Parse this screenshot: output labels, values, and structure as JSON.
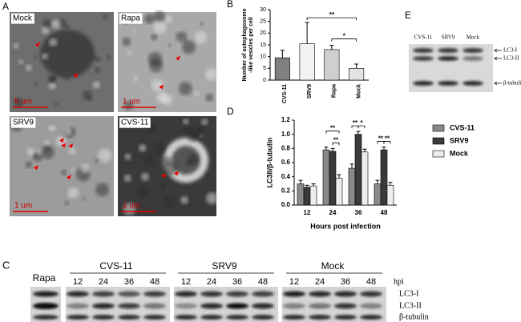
{
  "chart_data": [
    {
      "type": "bar",
      "ylabel": [
        "Number of autophagosome",
        "-like vesicles per cell"
      ],
      "categories": [
        "CVS-11",
        "SRV9",
        "Rapa",
        "Mock"
      ],
      "values": [
        9.5,
        15.5,
        13,
        5
      ],
      "errors": [
        3.2,
        9,
        1.8,
        1.8
      ],
      "colors": [
        "#808080",
        "#f2f2f2",
        "#cfcfcf",
        "#e4e4e4"
      ],
      "ylim": [
        0,
        30
      ],
      "yticks": [
        0,
        5,
        10,
        15,
        20,
        25,
        30
      ],
      "annotations": [
        "**",
        "*"
      ]
    },
    {
      "type": "bar",
      "ylabel": "LC3II/β-tubulin",
      "xlabel": "Hours post infection",
      "categories": [
        "12",
        "24",
        "36",
        "48"
      ],
      "series": [
        {
          "name": "CVS-11",
          "color": "#8a8a8a",
          "values": [
            0.3,
            0.78,
            0.52,
            0.3
          ],
          "errors": [
            0.05,
            0.04,
            0.06,
            0.05
          ]
        },
        {
          "name": "SRV9",
          "color": "#3a3a3a",
          "values": [
            0.25,
            0.76,
            1.0,
            0.78
          ],
          "errors": [
            0.03,
            0.04,
            0.04,
            0.04
          ]
        },
        {
          "name": "Mock",
          "color": "#eeeeee",
          "values": [
            0.27,
            0.38,
            0.75,
            0.28
          ],
          "errors": [
            0.03,
            0.05,
            0.04,
            0.04
          ]
        }
      ],
      "ylim": [
        0,
        1.2
      ],
      "yticks": [
        {
          "value": 0,
          "label": "0.0"
        },
        0.2,
        0.4,
        0.6,
        0.8,
        {
          "value": 1,
          "label": "1.0"
        },
        1.2
      ],
      "annotations": [
        "**",
        "**",
        "**",
        "*",
        "**",
        "**"
      ],
      "legend": "right"
    }
  ],
  "figure": {
    "panel_a": {
      "letter": "A",
      "images": [
        {
          "label": "Mock",
          "scale": "5 um"
        },
        {
          "label": "Rapa",
          "scale": "1 um"
        },
        {
          "label": "SRV9",
          "scale": "1 um"
        },
        {
          "label": "CVS-11",
          "scale": "1 um"
        }
      ]
    },
    "panel_b": {
      "letter": "B"
    },
    "panel_c": {
      "letter": "C",
      "control": "Rapa",
      "groups": [
        {
          "name": "CVS-11",
          "timepoints": [
            "12",
            "24",
            "36",
            "48"
          ]
        },
        {
          "name": "SRV9",
          "timepoints": [
            "12",
            "24",
            "36",
            "48"
          ]
        },
        {
          "name": "Mock",
          "timepoints": [
            "12",
            "24",
            "36",
            "48"
          ]
        }
      ],
      "unit": "hpi",
      "bands": [
        "LC3-I",
        "LC3-II",
        "β-tubulin"
      ]
    },
    "panel_d": {
      "letter": "D"
    },
    "panel_e": {
      "letter": "E",
      "lanes": [
        "CVS-11",
        "SRV9",
        "Mock"
      ],
      "bands": [
        "LC3-I",
        "LC3-II",
        "β-tubulin"
      ]
    }
  }
}
